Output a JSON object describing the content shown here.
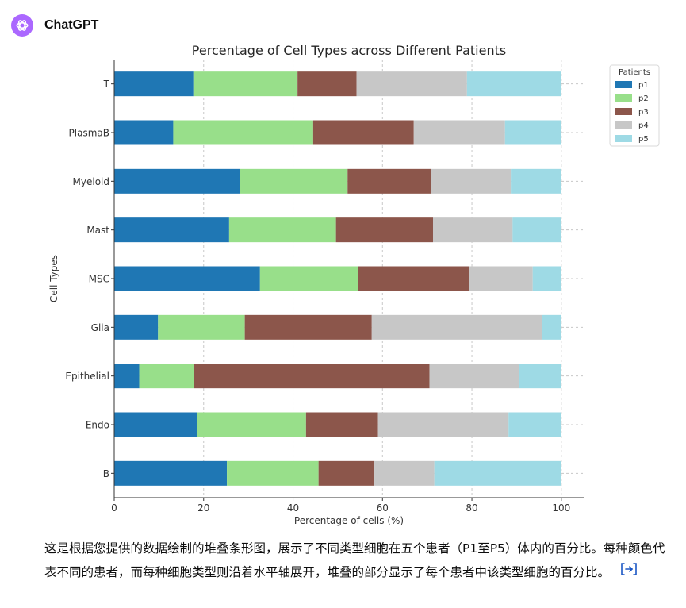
{
  "app": {
    "name": "ChatGPT",
    "logo_color": "#ab68ff"
  },
  "message": {
    "text": "这是根据您提供的数据绘制的堆叠条形图，展示了不同类型细胞在五个患者（P1至P5）体内的百分比。每种颜色代表不同的患者，而每种细胞类型则沿着水平轴展开，堆叠的部分显示了每个患者中该类型细胞的百分比。",
    "cite_icon": "code-bracket-icon",
    "cite_color": "#1a56c4"
  },
  "chart_data": {
    "type": "bar",
    "orientation": "horizontal",
    "stacked": true,
    "title": "Percentage of Cell Types across Different Patients",
    "xlabel": "Percentage of cells (%)",
    "ylabel": "Cell Types",
    "xlim": [
      0,
      105
    ],
    "xticks": [
      0,
      20,
      40,
      60,
      80,
      100
    ],
    "grid": "x dashed",
    "legend": {
      "title": "Patients",
      "placement": "upper-right outside"
    },
    "categories": [
      "B",
      "Endo",
      "Epithelial",
      "Glia",
      "MSC",
      "Mast",
      "Myeloid",
      "PlasmaB",
      "T"
    ],
    "series": [
      {
        "name": "p1",
        "color": "#1f77b4",
        "values": [
          25.2,
          18.6,
          5.6,
          9.8,
          32.6,
          25.7,
          28.2,
          13.2,
          17.7
        ]
      },
      {
        "name": "p2",
        "color": "#98df8a",
        "values": [
          20.5,
          24.3,
          12.2,
          19.4,
          21.9,
          23.9,
          24.0,
          31.3,
          23.3
        ]
      },
      {
        "name": "p3",
        "color": "#8c564b",
        "values": [
          12.5,
          16.1,
          52.7,
          28.4,
          24.8,
          21.7,
          18.6,
          22.5,
          13.2
        ]
      },
      {
        "name": "p4",
        "color": "#c7c7c7",
        "values": [
          13.4,
          29.2,
          20.1,
          38.0,
          14.3,
          17.8,
          17.9,
          20.4,
          24.7
        ]
      },
      {
        "name": "p5",
        "color": "#9edae5",
        "values": [
          28.4,
          11.8,
          9.4,
          4.4,
          6.4,
          10.9,
          11.3,
          12.6,
          21.1
        ]
      }
    ]
  }
}
